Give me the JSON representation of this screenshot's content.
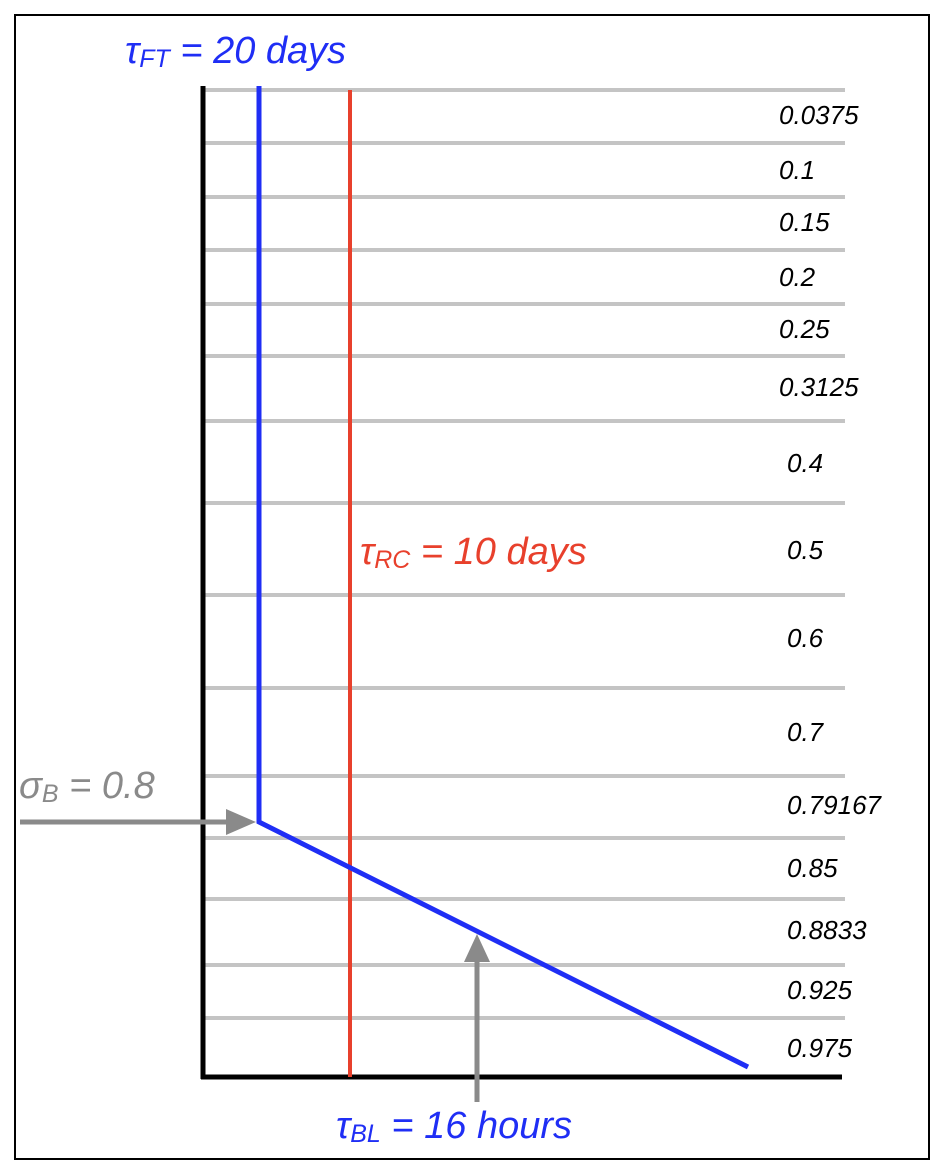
{
  "levels": [
    "0.0375",
    "0.1",
    "0.15",
    "0.2",
    "0.25",
    "0.3125",
    "0.4",
    "0.5",
    "0.6",
    "0.7",
    "0.79167",
    "0.85",
    "0.8833",
    "0.925",
    "0.975"
  ],
  "labels": {
    "tau_ft": {
      "symbol": "τ",
      "sub": "FT",
      "text": " = 20 days"
    },
    "tau_rc": {
      "symbol": "τ",
      "sub": "RC",
      "text": " = 10 days"
    },
    "sigma_b": {
      "symbol": "σ",
      "sub": "B",
      "text": " = 0.8"
    },
    "tau_bl": {
      "symbol": "τ",
      "sub": "BL",
      "text": " = 16 hours"
    }
  },
  "colors": {
    "blue": "#1f2ef5",
    "red": "#e8402c",
    "gray": "#8a8a8a",
    "gridline": "#c4c4c4",
    "axis": "#000000"
  }
}
